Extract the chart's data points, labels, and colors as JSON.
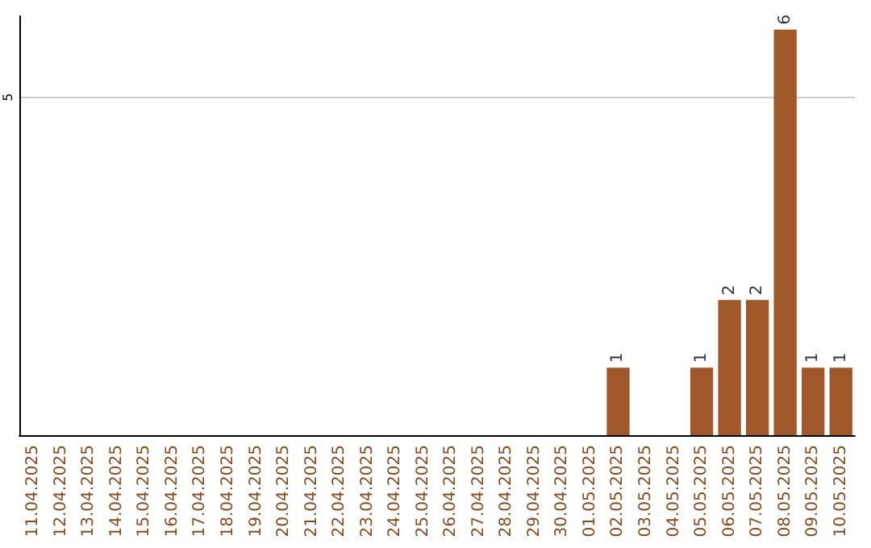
{
  "chart_data": {
    "type": "bar",
    "categories": [
      "11.04.2025",
      "12.04.2025",
      "13.04.2025",
      "14.04.2025",
      "15.04.2025",
      "16.04.2025",
      "17.04.2025",
      "18.04.2025",
      "19.04.2025",
      "20.04.2025",
      "21.04.2025",
      "22.04.2025",
      "23.04.2025",
      "24.04.2025",
      "25.04.2025",
      "26.04.2025",
      "27.04.2025",
      "28.04.2025",
      "29.04.2025",
      "30.04.2025",
      "01.05.2025",
      "02.05.2025",
      "03.05.2025",
      "04.05.2025",
      "05.05.2025",
      "06.05.2025",
      "07.05.2025",
      "08.05.2025",
      "09.05.2025",
      "10.05.2025"
    ],
    "values": [
      null,
      null,
      null,
      null,
      null,
      null,
      null,
      null,
      null,
      null,
      null,
      null,
      null,
      null,
      null,
      null,
      null,
      null,
      null,
      null,
      null,
      1,
      null,
      null,
      1,
      2,
      2,
      6,
      1,
      1
    ],
    "data_labels": true,
    "color": "#a0582a",
    "ylim": [
      0,
      6.2
    ],
    "yticks": [
      5
    ],
    "grid": "y"
  }
}
